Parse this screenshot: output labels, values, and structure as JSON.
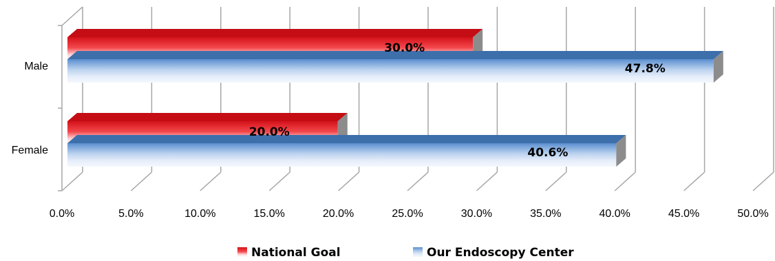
{
  "chart_data": {
    "type": "bar",
    "orientation": "horizontal",
    "style": "3d-clustered",
    "title": "",
    "xlabel": "",
    "ylabel": "",
    "categories": [
      "Male",
      "Female"
    ],
    "series": [
      {
        "name": "National Goal",
        "values": [
          30.0,
          20.0
        ],
        "labels": [
          "30.0%",
          "20.0%"
        ],
        "color": "#e8242a"
      },
      {
        "name": "Our Endoscopy Center",
        "values": [
          47.8,
          40.6
        ],
        "labels": [
          "47.8%",
          "40.6%"
        ],
        "color": "#4a7ebf"
      }
    ],
    "xlim": [
      0,
      50
    ],
    "x_ticks": [
      "0.0%",
      "5.0%",
      "10.0%",
      "15.0%",
      "20.0%",
      "25.0%",
      "30.0%",
      "35.0%",
      "40.0%",
      "45.0%",
      "50.0%"
    ],
    "grid": true,
    "legend_position": "bottom"
  }
}
